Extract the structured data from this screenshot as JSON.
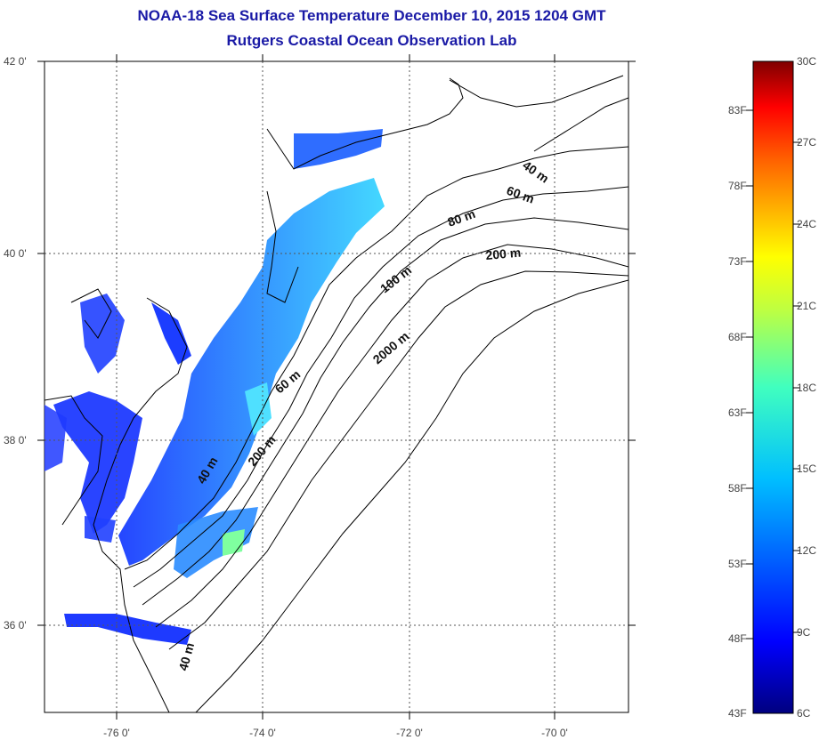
{
  "title": {
    "line1": "NOAA-18 Sea Surface Temperature December 10, 2015 1204 GMT",
    "line2": "Rutgers Coastal Ocean Observation Lab"
  },
  "map": {
    "lon_range": [
      -77,
      -69
    ],
    "lat_range": [
      35,
      42
    ],
    "lat_ticks": [
      "42 0'",
      "40 0'",
      "38 0'",
      "36 0'"
    ],
    "lon_ticks": [
      "-76 0'",
      "-74 0'",
      "-72 0'",
      "-70 0'"
    ],
    "grid": "dotted",
    "contour_labels": [
      "40 m",
      "60 m",
      "80 m",
      "200 m",
      "100 m",
      "2000 m",
      "60 m",
      "40 m",
      "200 m",
      "40 m"
    ]
  },
  "colorbar": {
    "fahrenheit_labels": [
      "83F",
      "78F",
      "73F",
      "68F",
      "63F",
      "58F",
      "53F",
      "48F",
      "43F"
    ],
    "celsius_labels": [
      "30C",
      "27C",
      "24C",
      "21C",
      "18C",
      "15C",
      "12C",
      "9C",
      "6C"
    ],
    "celsius_range": [
      6,
      30
    ],
    "colormap": [
      "#00007f",
      "#0000ff",
      "#007fff",
      "#00ffff",
      "#7fff7f",
      "#ffff00",
      "#ff7f00",
      "#ff0000",
      "#7f0000"
    ]
  }
}
